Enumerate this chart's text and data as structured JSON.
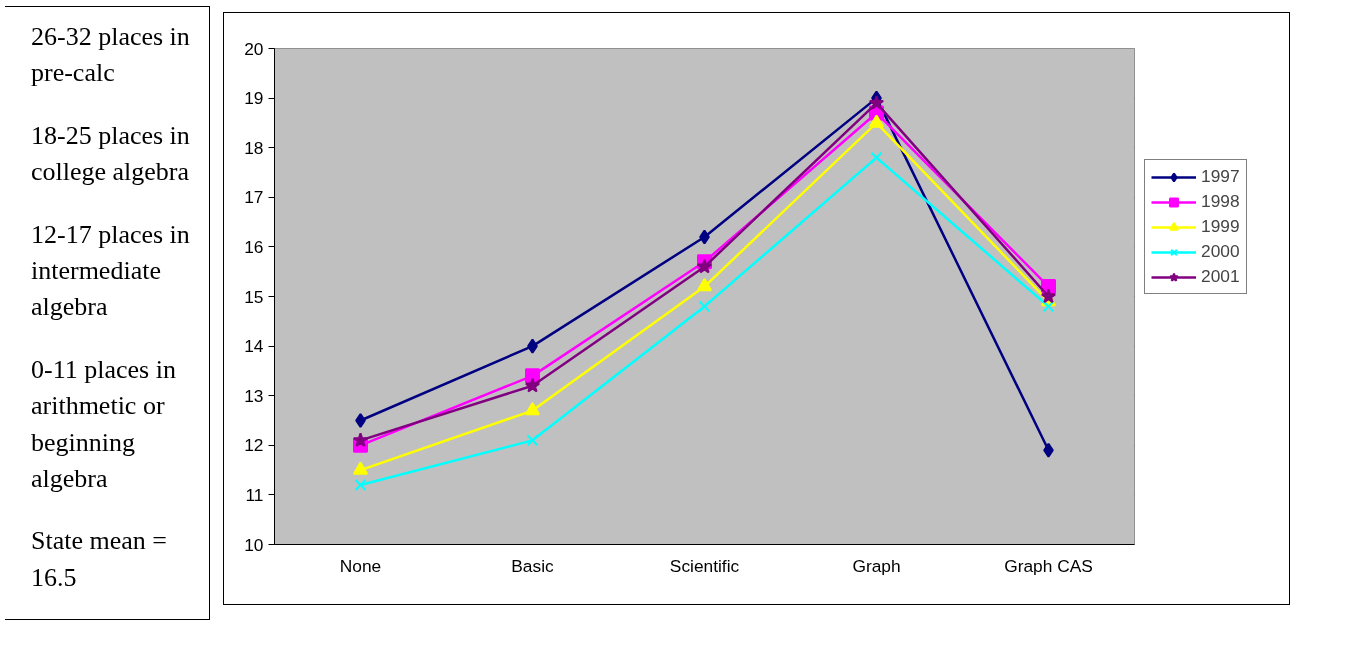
{
  "chart_data": {
    "type": "line",
    "categories": [
      "None",
      "Basic",
      "Scientific",
      "Graph",
      "Graph CAS"
    ],
    "series": [
      {
        "name": "1997",
        "color": "#000080",
        "marker": "diamond",
        "values": [
          12.5,
          14.0,
          16.2,
          19.0,
          11.9
        ]
      },
      {
        "name": "1998",
        "color": "#ff00ff",
        "marker": "square",
        "values": [
          12.0,
          13.4,
          15.7,
          18.7,
          15.2
        ]
      },
      {
        "name": "1999",
        "color": "#ffff00",
        "marker": "triangle",
        "values": [
          11.5,
          12.7,
          15.2,
          18.5,
          14.9
        ]
      },
      {
        "name": "2000",
        "color": "#00ffff",
        "marker": "cross",
        "values": [
          11.2,
          12.1,
          14.8,
          17.8,
          14.8
        ]
      },
      {
        "name": "2001",
        "color": "#800080",
        "marker": "star",
        "values": [
          12.1,
          13.2,
          15.6,
          18.9,
          15.0
        ]
      }
    ],
    "ylim": [
      10,
      20
    ],
    "yticks": [
      10,
      11,
      12,
      13,
      14,
      15,
      16,
      17,
      18,
      19,
      20
    ],
    "grid": "y",
    "legend": "right",
    "line_style": "solid",
    "annotations": [
      "26-32 places in pre-calc",
      "18-25 places in college algebra",
      "12-17 places in intermediate algebra",
      "0-11 places in arithmetic or beginning algebra",
      "State mean = 16.5"
    ]
  }
}
